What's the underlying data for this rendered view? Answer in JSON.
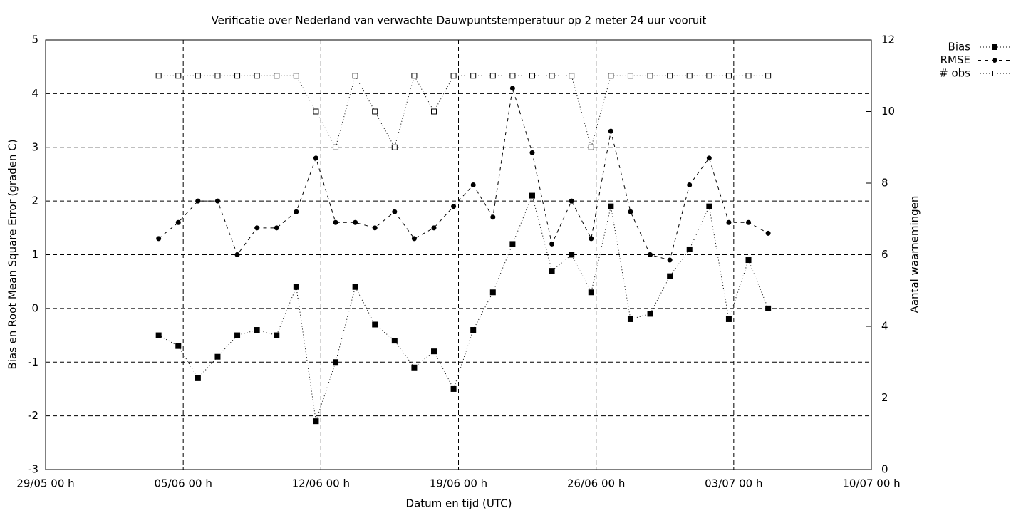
{
  "chart_data": {
    "type": "line",
    "title": "Verificatie over Nederland van verwachte Dauwpuntstemperatuur op 2 meter 24 uur vooruit",
    "xlabel": "Datum en tijd (UTC)",
    "ylabel": "Bias en Root Mean Square Error (graden C)",
    "y2label": "Aantal waarnemingen",
    "x": [
      5.75,
      6.75,
      7.75,
      8.75,
      9.75,
      10.75,
      11.75,
      12.75,
      13.75,
      14.75,
      15.75,
      16.75,
      17.75,
      18.75,
      19.75,
      20.75,
      21.75,
      22.75,
      23.75,
      24.75,
      25.75,
      26.75,
      27.75,
      28.75,
      29.75,
      30.75,
      31.75,
      32.75,
      33.75,
      34.75,
      35.75,
      36.75
    ],
    "xlim": [
      0,
      42
    ],
    "xticks": [
      {
        "value": 0,
        "label": "29/05 00 h"
      },
      {
        "value": 7,
        "label": "05/06 00 h"
      },
      {
        "value": 14,
        "label": "12/06 00 h"
      },
      {
        "value": 21,
        "label": "19/06 00 h"
      },
      {
        "value": 28,
        "label": "26/06 00 h"
      },
      {
        "value": 35,
        "label": "03/07 00 h"
      },
      {
        "value": 42,
        "label": "10/07 00 h"
      }
    ],
    "ylim": [
      -3,
      5
    ],
    "yticks": [
      -3,
      -2,
      -1,
      0,
      1,
      2,
      3,
      4,
      5
    ],
    "y2lim": [
      0,
      12
    ],
    "y2ticks": [
      0,
      2,
      4,
      6,
      8,
      10,
      12
    ],
    "grid": true,
    "legend": "top-right-outside",
    "series": [
      {
        "name": "Bias",
        "color": "#000000",
        "dash": "1,3",
        "marker": "filled-square",
        "values": [
          -0.5,
          -0.7,
          -1.3,
          -0.9,
          -0.5,
          -0.4,
          -0.5,
          0.4,
          -2.1,
          -1.0,
          0.4,
          -0.3,
          -0.6,
          -1.1,
          -0.8,
          -1.5,
          -0.4,
          0.3,
          1.2,
          2.1,
          0.7,
          1.0,
          0.3,
          1.9,
          -0.2,
          -0.1,
          0.6,
          1.1,
          1.9,
          -0.2,
          0.9,
          0.0
        ]
      },
      {
        "name": "RMSE",
        "color": "#000000",
        "dash": "5,5",
        "marker": "filled-circle",
        "values": [
          1.3,
          1.6,
          2.0,
          2.0,
          1.0,
          1.5,
          1.5,
          1.8,
          2.8,
          1.6,
          1.6,
          1.5,
          1.8,
          1.3,
          1.5,
          1.9,
          2.3,
          1.7,
          4.1,
          2.9,
          1.2,
          2.0,
          1.3,
          3.3,
          1.8,
          1.0,
          0.9,
          2.3,
          2.8,
          1.6,
          1.6,
          1.4
        ]
      },
      {
        "name": "# obs",
        "color": "#000000",
        "dash": "1,3",
        "marker": "open-square",
        "axis": "y2",
        "values": [
          11,
          11,
          11,
          11,
          11,
          11,
          11,
          11,
          10,
          9,
          11,
          10,
          9,
          11,
          10,
          11,
          11,
          11,
          11,
          11,
          11,
          11,
          9,
          11,
          11,
          11,
          11,
          11,
          11,
          11,
          11,
          11
        ]
      }
    ]
  }
}
